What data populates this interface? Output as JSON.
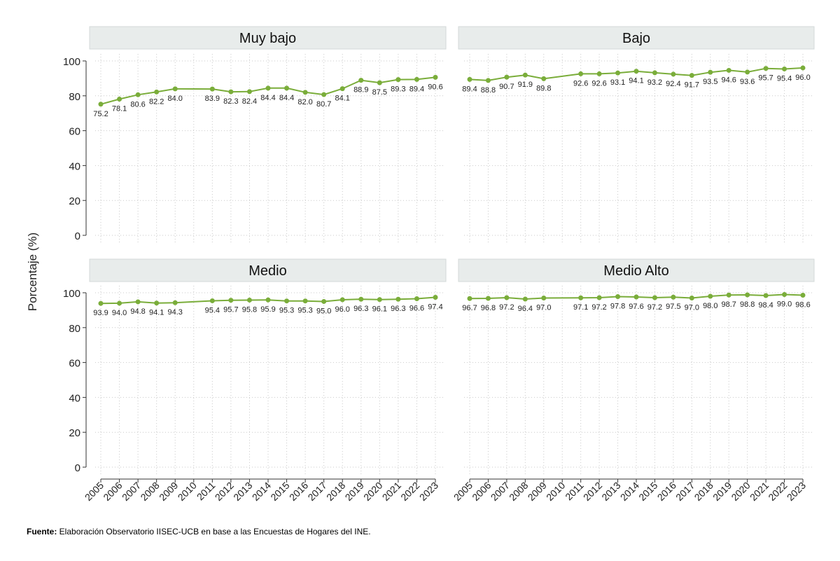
{
  "ylabel": "Porcentaje (%)",
  "footnote": {
    "label": "Fuente:",
    "text": " Elaboración Observatorio IISEC-UCB en base a las Encuestas de Hogares del INE."
  },
  "colors": {
    "line": "#7aad3a",
    "panel_header": "#e8eceb",
    "grid": "#c9c9c9"
  },
  "chart_data": {
    "type": "line",
    "ylim": [
      0,
      100
    ],
    "yticks": [
      0,
      20,
      40,
      60,
      80,
      100
    ],
    "grid": true,
    "xticks": [
      "2005",
      "2006",
      "2007",
      "2008",
      "2009",
      "2010",
      "2011",
      "2012",
      "2013",
      "2014",
      "2015",
      "2016",
      "2017",
      "2018",
      "2019",
      "2020",
      "2021",
      "2022",
      "2023"
    ],
    "panels": [
      {
        "title": "Muy bajo",
        "x": [
          "2005",
          "2006",
          "2007",
          "2008",
          "2009",
          "2011",
          "2012",
          "2013",
          "2014",
          "2015",
          "2016",
          "2017",
          "2018",
          "2019",
          "2020",
          "2021",
          "2022",
          "2023"
        ],
        "values": [
          75.2,
          78.1,
          80.6,
          82.2,
          84.0,
          83.9,
          82.3,
          82.4,
          84.4,
          84.4,
          82.0,
          80.7,
          84.1,
          88.9,
          87.5,
          89.3,
          89.4,
          90.6
        ],
        "labels": [
          "75.2",
          "78.1",
          "80.6",
          "82.2",
          "84.0",
          "83.9",
          "82.3",
          "82.4",
          "84.4",
          "84.4",
          "82.0",
          "80.7",
          "84.1",
          "88.9",
          "87.5",
          "89.3",
          "89.4",
          "90.6"
        ]
      },
      {
        "title": "Bajo",
        "x": [
          "2005",
          "2006",
          "2007",
          "2008",
          "2009",
          "2011",
          "2012",
          "2013",
          "2014",
          "2015",
          "2016",
          "2017",
          "2018",
          "2019",
          "2020",
          "2021",
          "2022",
          "2023"
        ],
        "values": [
          89.4,
          88.8,
          90.7,
          91.9,
          89.8,
          92.6,
          92.6,
          93.1,
          94.1,
          93.2,
          92.4,
          91.7,
          93.5,
          94.6,
          93.6,
          95.7,
          95.4,
          96.0
        ],
        "labels": [
          "89.4",
          "88.8",
          "90.7",
          "91.9",
          "89.8",
          "92.6",
          "92.6",
          "93.1",
          "94.1",
          "93.2",
          "92.4",
          "91.7",
          "93.5",
          "94.6",
          "93.6",
          "95.7",
          "95.4",
          "96.0"
        ]
      },
      {
        "title": "Medio",
        "x": [
          "2005",
          "2006",
          "2007",
          "2008",
          "2009",
          "2011",
          "2012",
          "2013",
          "2014",
          "2015",
          "2016",
          "2017",
          "2018",
          "2019",
          "2020",
          "2021",
          "2022",
          "2023"
        ],
        "values": [
          93.9,
          94.0,
          94.8,
          94.1,
          94.3,
          95.4,
          95.7,
          95.8,
          95.9,
          95.3,
          95.3,
          95.0,
          96.0,
          96.3,
          96.1,
          96.3,
          96.6,
          97.4
        ],
        "labels": [
          "93.9",
          "94.0",
          "94.8",
          "94.1",
          "94.3",
          "95.4",
          "95.7",
          "95.8",
          "95.9",
          "95.3",
          "95.3",
          "95.0",
          "96.0",
          "96.3",
          "96.1",
          "96.3",
          "96.6",
          "97.4"
        ]
      },
      {
        "title": "Medio Alto",
        "x": [
          "2005",
          "2006",
          "2007",
          "2008",
          "2009",
          "2011",
          "2012",
          "2013",
          "2014",
          "2015",
          "2016",
          "2017",
          "2018",
          "2019",
          "2020",
          "2021",
          "2022",
          "2023"
        ],
        "values": [
          96.7,
          96.8,
          97.2,
          96.4,
          97.0,
          97.1,
          97.2,
          97.8,
          97.6,
          97.2,
          97.5,
          97.0,
          98.0,
          98.7,
          98.8,
          98.4,
          99.0,
          98.6
        ],
        "labels": [
          "96.7",
          "96.8",
          "97.2",
          "96.4",
          "97.0",
          "97.1",
          "97.2",
          "97.8",
          "97.6",
          "97.2",
          "97.5",
          "97.0",
          "98.0",
          "98.7",
          "98.8",
          "98.4",
          "99.0",
          "98.6"
        ]
      }
    ]
  }
}
